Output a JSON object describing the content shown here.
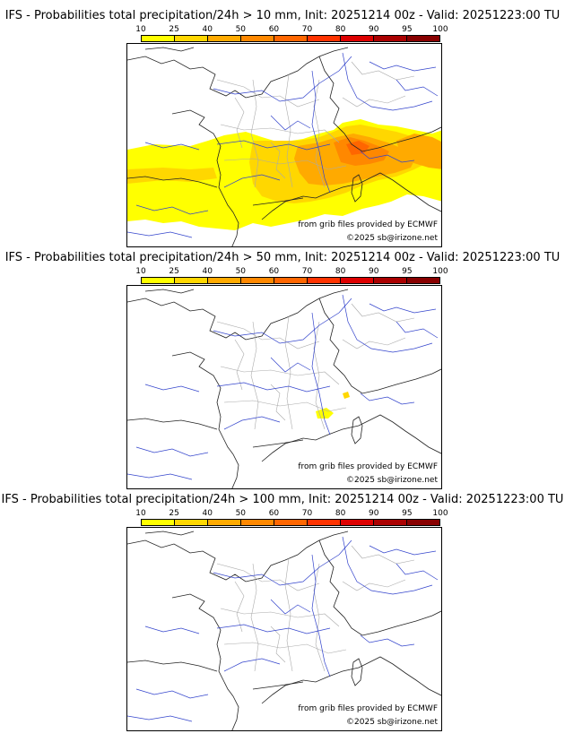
{
  "colorbar": {
    "ticks": [
      "10",
      "25",
      "40",
      "50",
      "60",
      "70",
      "80",
      "90",
      "95",
      "100"
    ],
    "colors": [
      "#ffff00",
      "#ffd700",
      "#ffaa00",
      "#ff8800",
      "#ff6600",
      "#ff3300",
      "#dd0000",
      "#aa0000",
      "#880000",
      "#550000"
    ]
  },
  "panels": [
    {
      "title": "IFS - Probabilities total precipitation/24h > 10 mm, Init: 20251214 00z - Valid: 20251223:00 TU",
      "source_note": "from grib files provided by ECMWF",
      "copyright": "©2025 sb@irizone.net"
    },
    {
      "title": "IFS - Probabilities total precipitation/24h > 50 mm, Init: 20251214 00z - Valid: 20251223:00 TU",
      "source_note": "from grib files provided by ECMWF",
      "copyright": "©2025 sb@irizone.net"
    },
    {
      "title": "IFS - Probabilities total precipitation/24h > 100 mm, Init: 20251214 00z - Valid: 20251223:00 TU",
      "source_note": "from grib files provided by ECMWF",
      "copyright": "©2025 sb@irizone.net"
    }
  ]
}
